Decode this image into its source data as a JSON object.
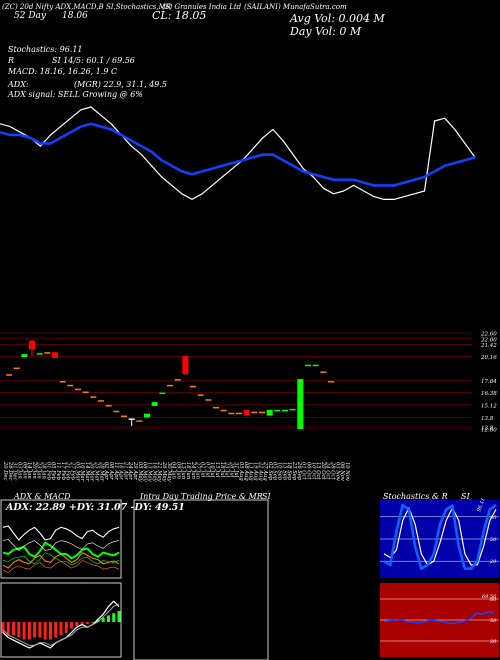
{
  "header": {
    "line1_a": "(ZC) 20d Nifty ADX,MACD,B",
    "line1_b": "SI,Stochastics,MR",
    "line1_c": "(S) Granules India Ltd",
    "line1_d": "(SAILANI) MunafaSutra.com",
    "line2_a": "52 Day",
    "line2_b": "18.06",
    "line2_cl": "CL: 18.05",
    "avg_vol": "Avg Vol: 0.004  M",
    "day_vol": "Day Vol: 0   M",
    "stochastics": "Stochastics: 96.11",
    "si_line_a": "R",
    "si_line_b": "SI 14/5: 60.1 / 69.56",
    "macd": "MACD: 18.16,  16.26,  1.9  C",
    "adx_a": "ADX:",
    "adx_b": "(MGR) 22.9,  31.1,  49.5",
    "adx_signal": "ADX  signal: SELL  Growing @ 6%"
  },
  "chart_data": [
    {
      "type": "line",
      "name": "price-vs-moving-average",
      "x": [
        0,
        1,
        2,
        3,
        4,
        5,
        6,
        7,
        8,
        9,
        10,
        11,
        12,
        13,
        14,
        15,
        16,
        17,
        18,
        19,
        20,
        21,
        22,
        23,
        24,
        25,
        26,
        27,
        28,
        29,
        30,
        31,
        32,
        33,
        34,
        35,
        36,
        37,
        38,
        39,
        40,
        41,
        42,
        43,
        44,
        45,
        46,
        47
      ],
      "series": [
        {
          "values": [
            21.4,
            21.3,
            21.1,
            20.9,
            20.6,
            21.0,
            21.3,
            21.6,
            21.9,
            22.0,
            21.7,
            21.4,
            21.0,
            20.6,
            20.3,
            19.9,
            19.5,
            19.2,
            18.9,
            18.7,
            18.9,
            19.2,
            19.5,
            19.8,
            20.1,
            20.5,
            20.9,
            21.2,
            20.8,
            20.3,
            19.8,
            19.5,
            19.1,
            18.9,
            19.0,
            19.2,
            19.0,
            18.8,
            18.7,
            18.7,
            18.8,
            18.9,
            19.0,
            21.5,
            21.6,
            21.2,
            20.7,
            20.2
          ]
        },
        {
          "values": [
            21.1,
            21.0,
            21.0,
            20.9,
            20.7,
            20.7,
            20.9,
            21.1,
            21.3,
            21.4,
            21.3,
            21.2,
            21.0,
            20.8,
            20.6,
            20.4,
            20.1,
            19.9,
            19.7,
            19.6,
            19.7,
            19.8,
            19.9,
            20.0,
            20.1,
            20.2,
            20.3,
            20.3,
            20.1,
            19.9,
            19.7,
            19.6,
            19.5,
            19.4,
            19.4,
            19.4,
            19.3,
            19.2,
            19.2,
            19.2,
            19.3,
            19.4,
            19.5,
            19.7,
            19.9,
            20.0,
            20.1,
            20.2
          ]
        }
      ]
    },
    {
      "type": "bar",
      "name": "candles",
      "price_ticks": [
        "22.60",
        "22.00",
        "21.42",
        "20.16",
        "17.64",
        "16.38",
        "15.12",
        "13.8",
        "12.8",
        "12.60"
      ],
      "candles": [
        {
          "o": 18.3,
          "c": 18.3,
          "h": 18.3,
          "l": 18.3,
          "color": "#ff8000"
        },
        {
          "o": 19.0,
          "c": 19.0,
          "h": 19.0,
          "l": 19.0,
          "color": "#ff8000"
        },
        {
          "o": 20.1,
          "c": 20.4,
          "h": 20.4,
          "l": 20.1,
          "color": "#00ff00"
        },
        {
          "o": 21.8,
          "c": 20.9,
          "h": 21.9,
          "l": 20.2,
          "color": "#ff0000"
        },
        {
          "o": 20.5,
          "c": 20.5,
          "h": 20.5,
          "l": 20.5,
          "color": "#00ff00"
        },
        {
          "o": 20.6,
          "c": 20.6,
          "h": 20.6,
          "l": 20.6,
          "color": "#ff8000"
        },
        {
          "o": 20.6,
          "c": 20.0,
          "h": 20.6,
          "l": 20.0,
          "color": "#ff0000"
        },
        {
          "o": 17.6,
          "c": 17.6,
          "h": 17.6,
          "l": 17.6,
          "color": "#ff8000"
        },
        {
          "o": 17.2,
          "c": 17.2,
          "h": 17.2,
          "l": 17.2,
          "color": "#ff8000"
        },
        {
          "o": 16.8,
          "c": 16.8,
          "h": 16.8,
          "l": 16.8,
          "color": "#ff8000"
        },
        {
          "o": 16.5,
          "c": 16.5,
          "h": 16.5,
          "l": 16.5,
          "color": "#ff8000"
        },
        {
          "o": 16.0,
          "c": 16.0,
          "h": 16.0,
          "l": 16.0,
          "color": "#ff8000"
        },
        {
          "o": 15.6,
          "c": 15.6,
          "h": 15.6,
          "l": 15.6,
          "color": "#ff8000"
        },
        {
          "o": 15.1,
          "c": 15.1,
          "h": 15.1,
          "l": 15.1,
          "color": "#ff8000"
        },
        {
          "o": 14.5,
          "c": 14.5,
          "h": 14.5,
          "l": 14.5,
          "color": "#ff8000"
        },
        {
          "o": 14.0,
          "c": 14.0,
          "h": 14.0,
          "l": 14.0,
          "color": "#ff8000"
        },
        {
          "o": 13.7,
          "c": 13.7,
          "h": 13.7,
          "l": 12.9,
          "color": "#ffffff"
        },
        {
          "o": 13.5,
          "c": 13.5,
          "h": 13.5,
          "l": 13.5,
          "color": "#ff8000"
        },
        {
          "o": 13.8,
          "c": 14.2,
          "h": 14.2,
          "l": 13.8,
          "color": "#00ff00"
        },
        {
          "o": 15.0,
          "c": 15.4,
          "h": 15.4,
          "l": 15.0,
          "color": "#00ff00"
        },
        {
          "o": 16.4,
          "c": 16.4,
          "h": 16.4,
          "l": 16.4,
          "color": "#00ff00"
        },
        {
          "o": 17.2,
          "c": 17.2,
          "h": 17.2,
          "l": 17.2,
          "color": "#ff8000"
        },
        {
          "o": 17.8,
          "c": 17.8,
          "h": 17.8,
          "l": 17.8,
          "color": "#ff8000"
        },
        {
          "o": 20.2,
          "c": 18.3,
          "h": 20.2,
          "l": 18.3,
          "color": "#ff0000"
        },
        {
          "o": 17.1,
          "c": 17.1,
          "h": 17.1,
          "l": 17.1,
          "color": "#ff8000"
        },
        {
          "o": 16.2,
          "c": 16.2,
          "h": 16.2,
          "l": 16.2,
          "color": "#ff8000"
        },
        {
          "o": 15.7,
          "c": 15.7,
          "h": 15.7,
          "l": 15.7,
          "color": "#ff8000"
        },
        {
          "o": 14.9,
          "c": 14.9,
          "h": 14.9,
          "l": 14.9,
          "color": "#ff8000"
        },
        {
          "o": 14.6,
          "c": 14.6,
          "h": 14.6,
          "l": 14.6,
          "color": "#ff8000"
        },
        {
          "o": 14.3,
          "c": 14.3,
          "h": 14.3,
          "l": 14.3,
          "color": "#ff8000"
        },
        {
          "o": 14.3,
          "c": 14.3,
          "h": 14.3,
          "l": 14.3,
          "color": "#ff8000"
        },
        {
          "o": 14.6,
          "c": 14.0,
          "h": 14.6,
          "l": 14.0,
          "color": "#ff0000"
        },
        {
          "o": 14.4,
          "c": 14.4,
          "h": 14.4,
          "l": 14.4,
          "color": "#ff8000"
        },
        {
          "o": 14.4,
          "c": 14.4,
          "h": 14.4,
          "l": 14.4,
          "color": "#ff8000"
        },
        {
          "o": 14.0,
          "c": 14.6,
          "h": 14.6,
          "l": 14.0,
          "color": "#00ff00"
        },
        {
          "o": 14.6,
          "c": 14.6,
          "h": 14.6,
          "l": 14.6,
          "color": "#00ff00"
        },
        {
          "o": 14.6,
          "c": 14.6,
          "h": 14.6,
          "l": 14.6,
          "color": "#00ff00"
        },
        {
          "o": 14.7,
          "c": 14.7,
          "h": 14.7,
          "l": 14.7,
          "color": "#00ff00"
        },
        {
          "o": 12.6,
          "c": 17.8,
          "h": 17.8,
          "l": 12.6,
          "color": "#00ff00"
        },
        {
          "o": 19.3,
          "c": 19.3,
          "h": 19.3,
          "l": 19.3,
          "color": "#00ff00"
        },
        {
          "o": 19.3,
          "c": 19.3,
          "h": 19.3,
          "l": 19.3,
          "color": "#00ff00"
        },
        {
          "o": 18.6,
          "c": 18.6,
          "h": 18.6,
          "l": 18.6,
          "color": "#ff8000"
        },
        {
          "o": 17.6,
          "c": 17.6,
          "h": 17.6,
          "l": 17.6,
          "color": "#ff8000"
        }
      ],
      "dates": [
        "20 Dec",
        "26 Dec",
        "31 Dec",
        "03 Jan",
        "09 Jan",
        "14 Jan",
        "20 Jan",
        "23 Jan",
        "28 Jan",
        "01 Feb",
        "05 Feb",
        "11 Feb",
        "17 Feb",
        "21 Feb",
        "27 Feb",
        "05 Mar",
        "10 Mar",
        "14 Mar",
        "20 Mar",
        "25 Mar",
        "28 Mar",
        "02 Apr",
        "08 Apr",
        "11 Apr",
        "16 Apr",
        "21 Apr",
        "24 Apr",
        "29 Apr",
        "05 May",
        "08 May",
        "13 May",
        "16 May",
        "21 May",
        "26 May",
        "30 May",
        "04 Jun",
        "09 Jun",
        "13 Jun",
        "18 Jun",
        "24 Jun",
        "27 Jun",
        "02 Jul",
        "07 Jul",
        "10 Jul",
        "15 Jul",
        "18 Jul",
        "23 Jul",
        "28 Jul",
        "31 Jul",
        "05 Aug",
        "08 Aug",
        "13 Aug",
        "19 Aug",
        "22 Aug",
        "27 Aug",
        "02 Sep",
        "05 Sep",
        "10 Sep",
        "15 Sep",
        "18 Sep",
        "23 Sep",
        "26 Sep",
        "01 Oct",
        "06 Oct",
        "10 Oct",
        "15 Oct",
        "20 Oct",
        "24 Oct",
        "28 Oct",
        "03 Nov",
        "06 Nov",
        "10 Nov"
      ]
    },
    {
      "type": "line",
      "name": "adx-macd-panel",
      "title": "ADX  & MACD",
      "readout": "ADX: 22.89  +DY: 31.07  -DY: 49.51",
      "series": [
        {
          "name": "ADX",
          "color": "#ff8000",
          "values": [
            22,
            20,
            24,
            26,
            24,
            23,
            27,
            29,
            25,
            24,
            28,
            30,
            27,
            24,
            26,
            31,
            29,
            27,
            26,
            23,
            24,
            25,
            23
          ]
        },
        {
          "name": "+DY",
          "color": "#00ff00",
          "values": [
            31,
            30,
            33,
            34,
            35,
            30,
            28,
            32,
            38,
            36,
            33,
            30,
            30,
            27,
            29,
            33,
            34,
            30,
            28,
            31,
            30,
            29,
            31
          ]
        },
        {
          "name": "-DY",
          "color": "#ffffff",
          "values": [
            49,
            50,
            45,
            40,
            44,
            47,
            49,
            45,
            40,
            41,
            47,
            49,
            48,
            46,
            43,
            41,
            46,
            47,
            44,
            42,
            46,
            48,
            49
          ]
        }
      ],
      "macd": {
        "hist": [
          -5,
          -6,
          -6,
          -7,
          -8,
          -8,
          -7,
          -7,
          -8,
          -8,
          -7,
          -6,
          -5,
          -3,
          -2,
          -1,
          -1,
          0,
          1,
          2,
          3,
          4,
          5
        ],
        "macd": [
          -4,
          -6,
          -7,
          -8,
          -9,
          -10,
          -9,
          -8,
          -9,
          -10,
          -8,
          -7,
          -6,
          -4,
          -2,
          -1,
          -2,
          -1,
          1,
          3,
          6,
          8,
          6
        ],
        "signal": [
          -3,
          -5,
          -6,
          -7,
          -8,
          -9,
          -9,
          -8,
          -8,
          -9,
          -8,
          -7,
          -6,
          -5,
          -3,
          -2,
          -2,
          -1,
          0,
          2,
          4,
          6,
          7
        ]
      }
    },
    {
      "type": "line",
      "name": "intraday-panel",
      "title": "Intra  Day Trading Price  & MR",
      "title_si": "SI"
    },
    {
      "type": "line",
      "name": "stochastics-si-panel",
      "title": "Stochastics & R",
      "title_si": "SI",
      "stoch_ticks": [
        "80",
        "50",
        "20"
      ],
      "si_ticks": [
        "80",
        "50",
        "20"
      ],
      "stoch_fast": [
        20,
        15,
        60,
        96,
        90,
        40,
        10,
        15,
        30,
        70,
        90,
        95,
        40,
        10,
        10,
        20,
        60,
        90,
        96
      ],
      "stoch_slow": [
        30,
        25,
        35,
        75,
        92,
        70,
        30,
        15,
        20,
        45,
        75,
        92,
        75,
        30,
        15,
        15,
        40,
        75,
        90
      ],
      "stoch_label": "96.11",
      "si_values": [
        48,
        49,
        51,
        50,
        48,
        47,
        46,
        48,
        50,
        49,
        48,
        46,
        45,
        47,
        49,
        52,
        60,
        58,
        62,
        60
      ],
      "si_label": "69.56"
    }
  ]
}
